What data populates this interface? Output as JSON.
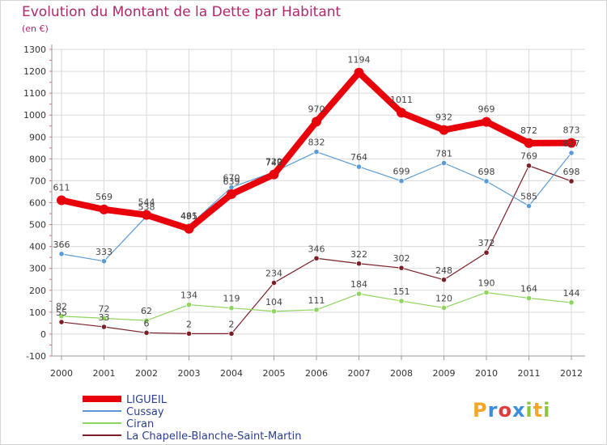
{
  "title": "Evolution du Montant de la Dette par Habitant",
  "subtitle": "(en €)",
  "logo": "Proxiti",
  "chart_data": {
    "type": "line",
    "title": "Evolution du Montant de la Dette par Habitant",
    "subtitle": "(en €)",
    "x": [
      "2000",
      "2001",
      "2002",
      "2003",
      "2004",
      "2005",
      "2006",
      "2007",
      "2008",
      "2009",
      "2010",
      "2011",
      "2012"
    ],
    "y_ticks": [
      -100,
      0,
      100,
      200,
      300,
      400,
      500,
      600,
      700,
      800,
      900,
      1000,
      1100,
      1200,
      1300
    ],
    "ylim": [
      -100,
      1300
    ],
    "grid": true,
    "legend_position": "bottom-left",
    "series": [
      {
        "name": "LIGUEIL",
        "color": "#e8000b",
        "values": [
          611,
          569,
          544,
          481,
          639,
          729,
          970,
          1194,
          1011,
          932,
          969,
          872,
          873
        ],
        "labels": [
          "611",
          "569",
          "544",
          "481",
          "639",
          "729",
          "970",
          "1194",
          "1011",
          "932",
          "969",
          "872",
          "873"
        ]
      },
      {
        "name": "Cussay",
        "color": "#5b9bd5",
        "values": [
          366,
          333,
          538,
          495,
          670,
          740,
          832,
          764,
          699,
          781,
          698,
          585,
          827
        ],
        "labels": [
          "366",
          "333",
          "538",
          "495",
          "670",
          "740",
          "832",
          "764",
          "699",
          "781",
          "698",
          "585",
          "827"
        ]
      },
      {
        "name": "Ciran",
        "color": "#8fd45e",
        "values": [
          82,
          72,
          62,
          134,
          119,
          104,
          111,
          184,
          151,
          120,
          190,
          164,
          144
        ],
        "labels": [
          "82",
          "72",
          "62",
          "134",
          "119",
          "104",
          "111",
          "184",
          "151",
          "120",
          "190",
          "164",
          "144"
        ]
      },
      {
        "name": "La Chapelle-Blanche-Saint-Martin",
        "color": "#7a1f27",
        "values": [
          55,
          33,
          6,
          2,
          2,
          234,
          346,
          322,
          302,
          248,
          372,
          769,
          698
        ],
        "labels": [
          "55",
          "33",
          "6",
          "2",
          "2",
          "234",
          "346",
          "322",
          "302",
          "248",
          "372",
          "769",
          "698"
        ]
      }
    ]
  }
}
